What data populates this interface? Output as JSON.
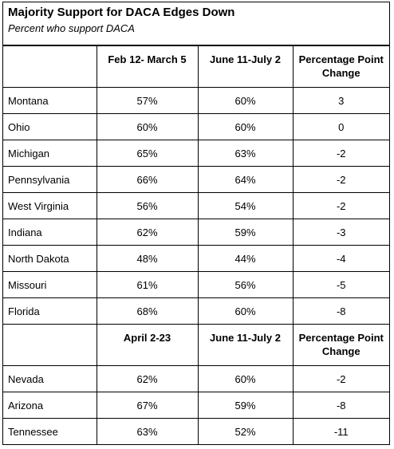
{
  "header": {
    "title": "Majority Support for DACA Edges Down",
    "subtitle": "Percent who support DACA"
  },
  "table": {
    "sections": [
      {
        "columns": [
          "Feb 12- March 5",
          "June 11-July 2",
          "Percentage Point Change"
        ],
        "rows": [
          [
            "Montana",
            "57%",
            "60%",
            "3"
          ],
          [
            "Ohio",
            "60%",
            "60%",
            "0"
          ],
          [
            "Michigan",
            "65%",
            "63%",
            "-2"
          ],
          [
            "Pennsylvania",
            "66%",
            "64%",
            "-2"
          ],
          [
            "West Virginia",
            "56%",
            "54%",
            "-2"
          ],
          [
            "Indiana",
            "62%",
            "59%",
            "-3"
          ],
          [
            "North Dakota",
            "48%",
            "44%",
            "-4"
          ],
          [
            "Missouri",
            "61%",
            "56%",
            "-5"
          ],
          [
            "Florida",
            "68%",
            "60%",
            "-8"
          ]
        ]
      },
      {
        "columns": [
          "April 2-23",
          "June 11-July 2",
          "Percentage Point Change"
        ],
        "rows": [
          [
            "Nevada",
            "62%",
            "60%",
            "-2"
          ],
          [
            "Arizona",
            "67%",
            "59%",
            "-8"
          ],
          [
            "Tennessee",
            "63%",
            "52%",
            "-11"
          ]
        ]
      }
    ]
  }
}
